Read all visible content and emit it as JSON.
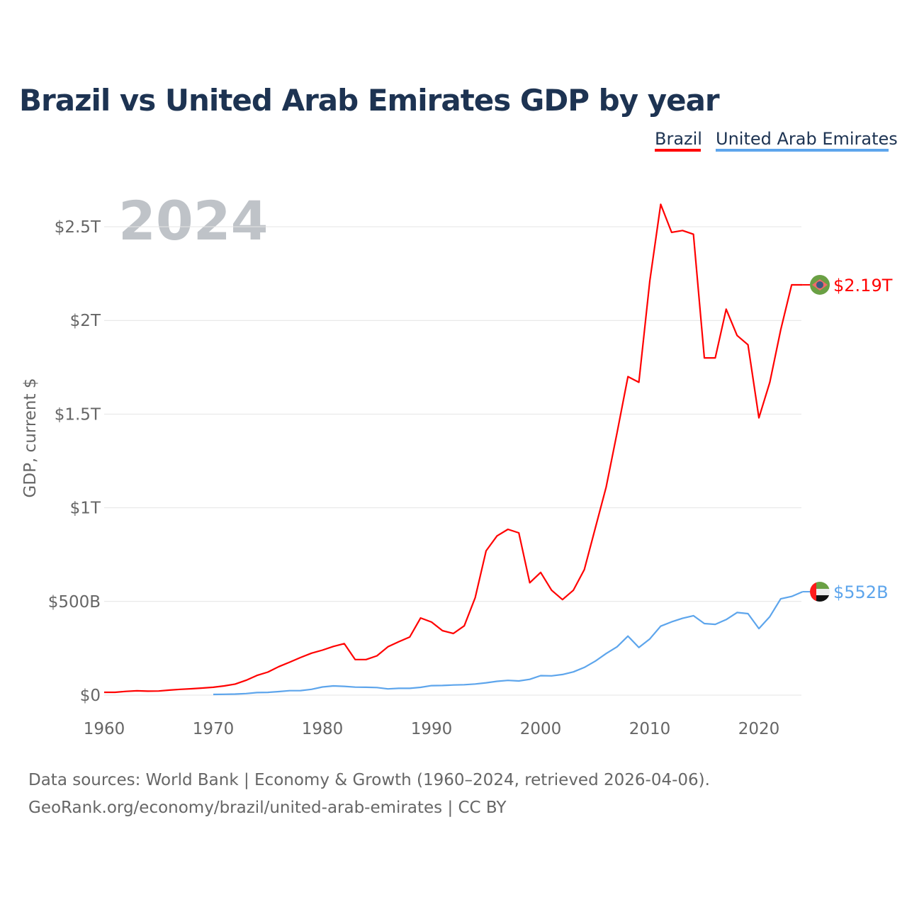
{
  "chart_data": {
    "type": "line",
    "title": "Brazil vs United Arab Emirates GDP by year",
    "ylabel": "GDP, current $",
    "xlabel": "",
    "xlim": [
      1960,
      2024
    ],
    "ylim": [
      0,
      2.7
    ],
    "y_unit": "trillion USD",
    "grid": true,
    "legend_placement": "top-right",
    "year_watermark": "2024",
    "x_ticks": [
      "1960",
      "1970",
      "1980",
      "1990",
      "2000",
      "2010",
      "2020"
    ],
    "y_ticks": [
      {
        "v": 0,
        "label": "$0"
      },
      {
        "v": 0.5,
        "label": "$500B"
      },
      {
        "v": 1,
        "label": "$1T"
      },
      {
        "v": 1.5,
        "label": "$1.5T"
      },
      {
        "v": 2,
        "label": "$2T"
      },
      {
        "v": 2.5,
        "label": "$2.5T"
      }
    ],
    "series": [
      {
        "name": "Brazil",
        "color": "#ff0000",
        "flag": "brazil-flag",
        "end_label": "$2.19T",
        "start": 1960,
        "values": [
          0.015,
          0.015,
          0.02,
          0.023,
          0.021,
          0.022,
          0.027,
          0.031,
          0.034,
          0.038,
          0.042,
          0.049,
          0.059,
          0.079,
          0.105,
          0.123,
          0.152,
          0.176,
          0.201,
          0.224,
          0.24,
          0.26,
          0.275,
          0.19,
          0.19,
          0.21,
          0.258,
          0.285,
          0.31,
          0.412,
          0.39,
          0.344,
          0.329,
          0.37,
          0.52,
          0.77,
          0.85,
          0.885,
          0.866,
          0.6,
          0.655,
          0.56,
          0.51,
          0.56,
          0.67,
          0.89,
          1.11,
          1.4,
          1.7,
          1.67,
          2.21,
          2.62,
          2.47,
          2.48,
          2.46,
          1.8,
          1.8,
          2.06,
          1.92,
          1.87,
          1.48,
          1.67,
          1.95,
          2.19,
          2.19
        ]
      },
      {
        "name": "United Arab Emirates",
        "color": "#5da5ec",
        "flag": "uae-flag",
        "end_label": "$552B",
        "start": 1970,
        "values": [
          0.0037,
          0.0045,
          0.0055,
          0.0085,
          0.0135,
          0.0147,
          0.019,
          0.024,
          0.0243,
          0.031,
          0.0436,
          0.0493,
          0.0468,
          0.0428,
          0.0418,
          0.0406,
          0.0333,
          0.0363,
          0.0363,
          0.0415,
          0.0507,
          0.0516,
          0.0542,
          0.0556,
          0.0593,
          0.0657,
          0.0736,
          0.0788,
          0.0757,
          0.0844,
          0.104,
          0.103,
          0.11,
          0.124,
          0.148,
          0.181,
          0.222,
          0.258,
          0.315,
          0.254,
          0.3,
          0.368,
          0.391,
          0.41,
          0.424,
          0.382,
          0.378,
          0.403,
          0.441,
          0.435,
          0.355,
          0.419,
          0.514,
          0.527,
          0.552
        ]
      }
    ]
  },
  "footer": {
    "line1": "Data sources: World Bank | Economy & Growth (1960–2024, retrieved 2026-04-06).",
    "line2": "GeoRank.org/economy/brazil/united-arab-emirates | CC BY"
  }
}
